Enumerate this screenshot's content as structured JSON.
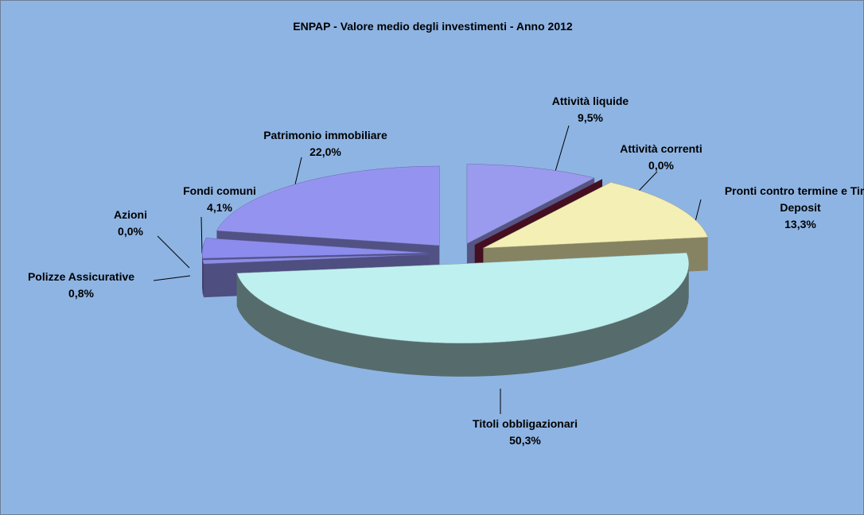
{
  "chart_data": {
    "type": "pie3d",
    "title": "ENPAP - Valore medio degli investimenti - Anno 2012",
    "categories": [
      "Attività liquide",
      "Attività correnti",
      "Pronti contro termine e Time Deposit",
      "Titoli obbligazionari",
      "Polizze Assicurative",
      "Azioni",
      "Fondi comuni",
      "Patrimonio immobiliare"
    ],
    "values": [
      9.5,
      0.0,
      13.3,
      50.3,
      0.8,
      0.0,
      4.1,
      22.0
    ],
    "value_labels": [
      "9,5%",
      "0,0%",
      "13,3%",
      "50,3%",
      "0,8%",
      "0,0%",
      "4,1%",
      "22,0%"
    ],
    "colors": [
      "#9a9aee",
      "#7b1c3c",
      "#f4efb4",
      "#bff0f0",
      "#8d8de8",
      "#8080dd",
      "#8c8cee",
      "#9494f0"
    ]
  }
}
